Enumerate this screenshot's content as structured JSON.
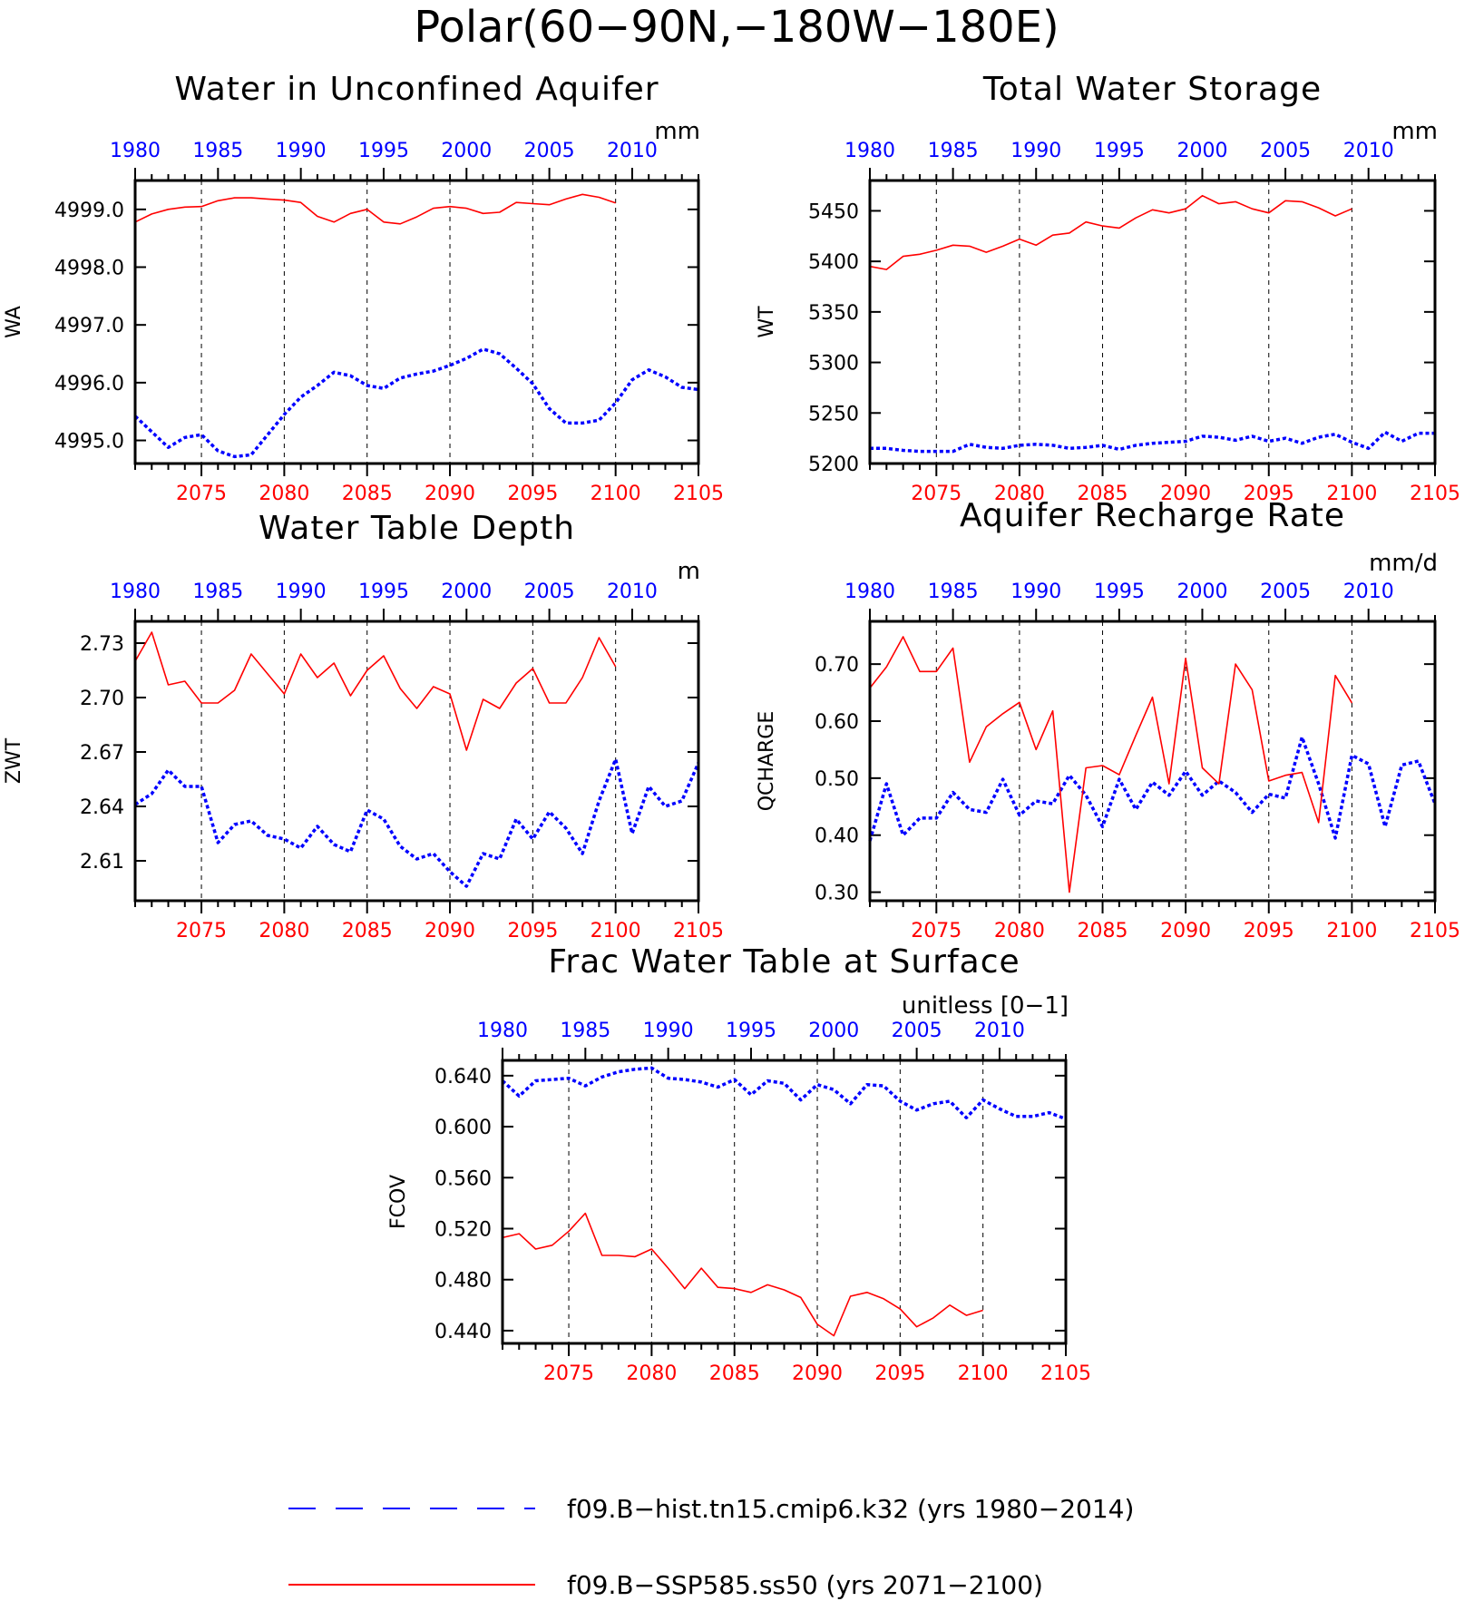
{
  "figure": {
    "title": "Polar(60−90N,−180W−180E)",
    "colors": {
      "hist": "#0000ff",
      "ssp": "#ff0000"
    }
  },
  "legend": {
    "entries": [
      {
        "label": "f09.B−hist.tn15.cmip6.k32 (yrs 1980−2014)",
        "style": "dashed",
        "color": "#0000ff"
      },
      {
        "label": "f09.B−SSP585.ss50 (yrs 2071−2100)",
        "style": "solid",
        "color": "#ff0000"
      }
    ]
  },
  "chart_data": [
    {
      "type": "line",
      "title": "Water in Unconfined Aquifer",
      "units": "mm",
      "ylabel": "WA",
      "ylim": [
        4994.6,
        4999.5
      ],
      "yticks": [
        4995.0,
        4996.0,
        4997.0,
        4998.0,
        4999.0
      ],
      "ytick_labels": [
        "4995.0",
        "4996.0",
        "4997.0",
        "4998.0",
        "4999.0"
      ],
      "top_axis": {
        "color": "#0000ff",
        "range": [
          1980,
          2014
        ],
        "ticks": [
          1980,
          1985,
          1990,
          1995,
          2000,
          2005,
          2010
        ]
      },
      "bottom_axis": {
        "color": "#ff0000",
        "range": [
          2071,
          2105
        ],
        "ticks": [
          2075,
          2080,
          2085,
          2090,
          2095,
          2100,
          2105
        ]
      },
      "grid_x": [
        2075,
        2080,
        2085,
        2090,
        2095,
        2100
      ],
      "series": [
        {
          "name": "f09.B−hist.tn15.cmip6.k32",
          "axis": "top",
          "color": "#0000ff",
          "dash": "dotted",
          "x": [
            1980,
            1981,
            1982,
            1983,
            1984,
            1985,
            1986,
            1987,
            1988,
            1989,
            1990,
            1991,
            1992,
            1993,
            1994,
            1995,
            1996,
            1997,
            1998,
            1999,
            2000,
            2001,
            2002,
            2003,
            2004,
            2005,
            2006,
            2007,
            2008,
            2009,
            2010,
            2011,
            2012,
            2013,
            2014
          ],
          "y": [
            4995.42,
            4995.15,
            4994.88,
            4995.05,
            4995.1,
            4994.82,
            4994.72,
            4994.75,
            4995.1,
            4995.45,
            4995.75,
            4995.95,
            4996.18,
            4996.12,
            4995.95,
            4995.9,
            4996.08,
            4996.15,
            4996.2,
            4996.3,
            4996.42,
            4996.58,
            4996.5,
            4996.25,
            4995.98,
            4995.55,
            4995.3,
            4995.3,
            4995.35,
            4995.65,
            4996.05,
            4996.22,
            4996.1,
            4995.92,
            4995.88
          ]
        },
        {
          "name": "f09.B−SSP585.ss50",
          "axis": "bottom",
          "color": "#ff0000",
          "dash": "solid",
          "x": [
            2071,
            2072,
            2073,
            2074,
            2075,
            2076,
            2077,
            2078,
            2079,
            2080,
            2081,
            2082,
            2083,
            2084,
            2085,
            2086,
            2087,
            2088,
            2089,
            2090,
            2091,
            2092,
            2093,
            2094,
            2095,
            2096,
            2097,
            2098,
            2099,
            2100
          ],
          "y": [
            4998.78,
            4998.92,
            4999.0,
            4999.04,
            4999.05,
            4999.15,
            4999.2,
            4999.2,
            4999.18,
            4999.16,
            4999.12,
            4998.88,
            4998.78,
            4998.93,
            4999.0,
            4998.78,
            4998.75,
            4998.87,
            4999.02,
            4999.05,
            4999.02,
            4998.93,
            4998.95,
            4999.12,
            4999.1,
            4999.08,
            4999.18,
            4999.26,
            4999.21,
            4999.11
          ]
        }
      ]
    },
    {
      "type": "line",
      "title": "Total Water Storage",
      "units": "mm",
      "ylabel": "WT",
      "ylim": [
        5200,
        5480
      ],
      "yticks": [
        5200,
        5250,
        5300,
        5350,
        5400,
        5450
      ],
      "ytick_labels": [
        "5200",
        "5250",
        "5300",
        "5350",
        "5400",
        "5450"
      ],
      "top_axis": {
        "color": "#0000ff",
        "range": [
          1980,
          2014
        ],
        "ticks": [
          1980,
          1985,
          1990,
          1995,
          2000,
          2005,
          2010
        ]
      },
      "bottom_axis": {
        "color": "#ff0000",
        "range": [
          2071,
          2105
        ],
        "ticks": [
          2075,
          2080,
          2085,
          2090,
          2095,
          2100,
          2105
        ]
      },
      "grid_x": [
        2075,
        2080,
        2085,
        2090,
        2095,
        2100
      ],
      "series": [
        {
          "name": "f09.B−hist.tn15.cmip6.k32",
          "axis": "top",
          "color": "#0000ff",
          "dash": "dotted",
          "x": [
            1980,
            1981,
            1982,
            1983,
            1984,
            1985,
            1986,
            1987,
            1988,
            1989,
            1990,
            1991,
            1992,
            1993,
            1994,
            1995,
            1996,
            1997,
            1998,
            1999,
            2000,
            2001,
            2002,
            2003,
            2004,
            2005,
            2006,
            2007,
            2008,
            2009,
            2010,
            2011,
            2012,
            2013,
            2014
          ],
          "y": [
            5215,
            5215,
            5213,
            5212,
            5212,
            5212,
            5219,
            5216,
            5215,
            5218,
            5219,
            5218,
            5215,
            5216,
            5218,
            5214,
            5218,
            5220,
            5221,
            5222,
            5227,
            5226,
            5223,
            5227,
            5222,
            5225,
            5220,
            5226,
            5229,
            5221,
            5215,
            5231,
            5222,
            5230,
            5230
          ]
        },
        {
          "name": "f09.B−SSP585.ss50",
          "axis": "bottom",
          "color": "#ff0000",
          "dash": "solid",
          "x": [
            2071,
            2072,
            2073,
            2074,
            2075,
            2076,
            2077,
            2078,
            2079,
            2080,
            2081,
            2082,
            2083,
            2084,
            2085,
            2086,
            2087,
            2088,
            2089,
            2090,
            2091,
            2092,
            2093,
            2094,
            2095,
            2096,
            2097,
            2098,
            2099,
            2100
          ],
          "y": [
            5395,
            5392,
            5405,
            5407,
            5411,
            5416,
            5415,
            5409,
            5415,
            5422,
            5416,
            5426,
            5428,
            5439,
            5435,
            5433,
            5443,
            5451,
            5448,
            5452,
            5465,
            5457,
            5459,
            5452,
            5448,
            5460,
            5459,
            5453,
            5445,
            5452
          ]
        }
      ]
    },
    {
      "type": "line",
      "title": "Water Table Depth",
      "units": "m",
      "ylabel": "ZWT",
      "ylim": [
        2.588,
        2.742
      ],
      "yticks": [
        2.61,
        2.64,
        2.67,
        2.7,
        2.73
      ],
      "ytick_labels": [
        "2.61",
        "2.64",
        "2.67",
        "2.70",
        "2.73"
      ],
      "top_axis": {
        "color": "#0000ff",
        "range": [
          1980,
          2014
        ],
        "ticks": [
          1980,
          1985,
          1990,
          1995,
          2000,
          2005,
          2010
        ]
      },
      "bottom_axis": {
        "color": "#ff0000",
        "range": [
          2071,
          2105
        ],
        "ticks": [
          2075,
          2080,
          2085,
          2090,
          2095,
          2100,
          2105
        ]
      },
      "grid_x": [
        2075,
        2080,
        2085,
        2090,
        2095,
        2100
      ],
      "series": [
        {
          "name": "f09.B−hist.tn15.cmip6.k32",
          "axis": "top",
          "color": "#0000ff",
          "dash": "dotted",
          "x": [
            1980,
            1981,
            1982,
            1983,
            1984,
            1985,
            1986,
            1987,
            1988,
            1989,
            1990,
            1991,
            1992,
            1993,
            1994,
            1995,
            1996,
            1997,
            1998,
            1999,
            2000,
            2001,
            2002,
            2003,
            2004,
            2005,
            2006,
            2007,
            2008,
            2009,
            2010,
            2011,
            2012,
            2013,
            2014
          ],
          "y": [
            2.641,
            2.647,
            2.66,
            2.651,
            2.651,
            2.62,
            2.63,
            2.632,
            2.624,
            2.622,
            2.617,
            2.629,
            2.619,
            2.615,
            2.638,
            2.633,
            2.618,
            2.611,
            2.614,
            2.604,
            2.596,
            2.614,
            2.611,
            2.633,
            2.622,
            2.637,
            2.628,
            2.614,
            2.643,
            2.666,
            2.625,
            2.651,
            2.64,
            2.643,
            2.664
          ]
        },
        {
          "name": "f09.B−SSP585.ss50",
          "axis": "bottom",
          "color": "#ff0000",
          "dash": "solid",
          "x": [
            2071,
            2072,
            2073,
            2074,
            2075,
            2076,
            2077,
            2078,
            2079,
            2080,
            2081,
            2082,
            2083,
            2084,
            2085,
            2086,
            2087,
            2088,
            2089,
            2090,
            2091,
            2092,
            2093,
            2094,
            2095,
            2096,
            2097,
            2098,
            2099,
            2100
          ],
          "y": [
            2.72,
            2.736,
            2.707,
            2.709,
            2.697,
            2.697,
            2.704,
            2.724,
            2.713,
            2.702,
            2.724,
            2.711,
            2.719,
            2.701,
            2.715,
            2.723,
            2.705,
            2.694,
            2.706,
            2.702,
            2.671,
            2.699,
            2.694,
            2.708,
            2.716,
            2.697,
            2.697,
            2.711,
            2.733,
            2.717
          ]
        }
      ]
    },
    {
      "type": "line",
      "title": "Aquifer Recharge Rate",
      "units": "mm/d",
      "ylabel": "QCHARGE",
      "ylim": [
        0.285,
        0.775
      ],
      "yticks": [
        0.3,
        0.4,
        0.5,
        0.6,
        0.7
      ],
      "ytick_labels": [
        "0.30",
        "0.40",
        "0.50",
        "0.60",
        "0.70"
      ],
      "top_axis": {
        "color": "#0000ff",
        "range": [
          1980,
          2014
        ],
        "ticks": [
          1980,
          1985,
          1990,
          1995,
          2000,
          2005,
          2010
        ]
      },
      "bottom_axis": {
        "color": "#ff0000",
        "range": [
          2071,
          2105
        ],
        "ticks": [
          2075,
          2080,
          2085,
          2090,
          2095,
          2100,
          2105
        ]
      },
      "grid_x": [
        2075,
        2080,
        2085,
        2090,
        2095,
        2100
      ],
      "series": [
        {
          "name": "f09.B−hist.tn15.cmip6.k32",
          "axis": "top",
          "color": "#0000ff",
          "dash": "dotted",
          "x": [
            1980,
            1981,
            1982,
            1983,
            1984,
            1985,
            1986,
            1987,
            1988,
            1989,
            1990,
            1991,
            1992,
            1993,
            1994,
            1995,
            1996,
            1997,
            1998,
            1999,
            2000,
            2001,
            2002,
            2003,
            2004,
            2005,
            2006,
            2007,
            2008,
            2009,
            2010,
            2011,
            2012,
            2013,
            2014
          ],
          "y": [
            0.39,
            0.49,
            0.4,
            0.43,
            0.43,
            0.475,
            0.445,
            0.44,
            0.498,
            0.435,
            0.46,
            0.455,
            0.505,
            0.47,
            0.415,
            0.498,
            0.445,
            0.493,
            0.47,
            0.512,
            0.47,
            0.495,
            0.475,
            0.44,
            0.472,
            0.465,
            0.572,
            0.49,
            0.395,
            0.54,
            0.525,
            0.415,
            0.523,
            0.53,
            0.455
          ]
        },
        {
          "name": "f09.B−SSP585.ss50",
          "axis": "bottom",
          "color": "#ff0000",
          "dash": "solid",
          "x": [
            2071,
            2072,
            2073,
            2074,
            2075,
            2076,
            2077,
            2078,
            2079,
            2080,
            2081,
            2082,
            2083,
            2084,
            2085,
            2086,
            2087,
            2088,
            2089,
            2090,
            2091,
            2092,
            2093,
            2094,
            2095,
            2096,
            2097,
            2098,
            2099,
            2100
          ],
          "y": [
            0.658,
            0.695,
            0.748,
            0.687,
            0.687,
            0.728,
            0.528,
            0.59,
            0.613,
            0.633,
            0.55,
            0.618,
            0.3,
            0.518,
            0.522,
            0.506,
            0.575,
            0.642,
            0.49,
            0.71,
            0.518,
            0.49,
            0.7,
            0.655,
            0.495,
            0.505,
            0.51,
            0.422,
            0.68,
            0.632
          ]
        }
      ]
    },
    {
      "type": "line",
      "title": "Frac Water Table at Surface",
      "units": "unitless [0−1]",
      "ylabel": "FCOV",
      "ylim": [
        0.43,
        0.652
      ],
      "yticks": [
        0.44,
        0.48,
        0.52,
        0.56,
        0.6,
        0.64
      ],
      "ytick_labels": [
        "0.440",
        "0.480",
        "0.520",
        "0.560",
        "0.600",
        "0.640"
      ],
      "top_axis": {
        "color": "#0000ff",
        "range": [
          1980,
          2014
        ],
        "ticks": [
          1980,
          1985,
          1990,
          1995,
          2000,
          2005,
          2010
        ]
      },
      "bottom_axis": {
        "color": "#ff0000",
        "range": [
          2071,
          2105
        ],
        "ticks": [
          2075,
          2080,
          2085,
          2090,
          2095,
          2100,
          2105
        ]
      },
      "grid_x": [
        2075,
        2080,
        2085,
        2090,
        2095,
        2100
      ],
      "series": [
        {
          "name": "f09.B−hist.tn15.cmip6.k32",
          "axis": "top",
          "color": "#0000ff",
          "dash": "dotted",
          "x": [
            1980,
            1981,
            1982,
            1983,
            1984,
            1985,
            1986,
            1987,
            1988,
            1989,
            1990,
            1991,
            1992,
            1993,
            1994,
            1995,
            1996,
            1997,
            1998,
            1999,
            2000,
            2001,
            2002,
            2003,
            2004,
            2005,
            2006,
            2007,
            2008,
            2009,
            2010,
            2011,
            2012,
            2013,
            2014
          ],
          "y": [
            0.636,
            0.624,
            0.636,
            0.637,
            0.638,
            0.632,
            0.639,
            0.643,
            0.645,
            0.646,
            0.638,
            0.637,
            0.635,
            0.631,
            0.637,
            0.625,
            0.636,
            0.634,
            0.621,
            0.633,
            0.629,
            0.618,
            0.633,
            0.632,
            0.62,
            0.613,
            0.618,
            0.62,
            0.607,
            0.621,
            0.614,
            0.608,
            0.608,
            0.611,
            0.606
          ]
        },
        {
          "name": "f09.B−SSP585.ss50",
          "axis": "bottom",
          "color": "#ff0000",
          "dash": "solid",
          "x": [
            2071,
            2072,
            2073,
            2074,
            2075,
            2076,
            2077,
            2078,
            2079,
            2080,
            2081,
            2082,
            2083,
            2084,
            2085,
            2086,
            2087,
            2088,
            2089,
            2090,
            2091,
            2092,
            2093,
            2094,
            2095,
            2096,
            2097,
            2098,
            2099,
            2100
          ],
          "y": [
            0.513,
            0.516,
            0.504,
            0.507,
            0.518,
            0.532,
            0.499,
            0.499,
            0.498,
            0.504,
            0.489,
            0.473,
            0.489,
            0.474,
            0.473,
            0.47,
            0.476,
            0.472,
            0.466,
            0.445,
            0.436,
            0.467,
            0.47,
            0.465,
            0.457,
            0.443,
            0.45,
            0.46,
            0.452,
            0.456
          ]
        }
      ]
    }
  ]
}
